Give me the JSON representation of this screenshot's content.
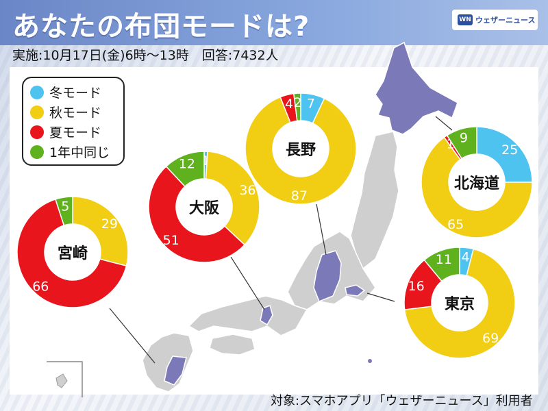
{
  "header": {
    "title": "あなたの布団モードは?",
    "logo_text": "ウェザーニュース",
    "logo_mark": "WN"
  },
  "survey": {
    "subtitle": "実施:10月17日(金)6時〜13時　回答:7432人",
    "source": "対象:スマホアプリ「ウェザーニュース」利用者"
  },
  "colors": {
    "winter": "#4fc3f0",
    "autumn": "#f1cd14",
    "summer": "#e8151c",
    "same": "#5fb11d",
    "map_land": "#cfcfcf",
    "map_highlight": "#7c79b8"
  },
  "chart_data": {
    "type": "pie",
    "categories": [
      "冬モード",
      "秋モード",
      "夏モード",
      "1年中同じ"
    ],
    "legend": [
      {
        "label": "冬モード",
        "color": "#4fc3f0"
      },
      {
        "label": "秋モード",
        "color": "#f1cd14"
      },
      {
        "label": "夏モード",
        "color": "#e8151c"
      },
      {
        "label": "1年中同じ",
        "color": "#5fb11d"
      }
    ],
    "charts": [
      {
        "name": "宮崎",
        "values": [
          0,
          29,
          66,
          5
        ]
      },
      {
        "name": "大阪",
        "values": [
          1,
          36,
          51,
          12
        ]
      },
      {
        "name": "長野",
        "values": [
          7,
          87,
          4,
          2
        ]
      },
      {
        "name": "北海道",
        "values": [
          25,
          65,
          1,
          9
        ]
      },
      {
        "name": "東京",
        "values": [
          4,
          69,
          16,
          11
        ]
      }
    ]
  }
}
